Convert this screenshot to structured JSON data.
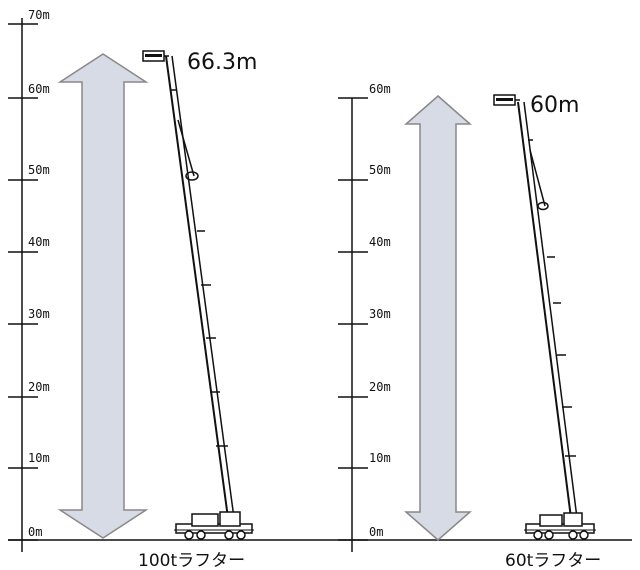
{
  "scale": {
    "labels": [
      "0m",
      "10m",
      "20m",
      "30m",
      "40m",
      "50m",
      "60m",
      "70m"
    ],
    "values": [
      0,
      10,
      20,
      30,
      40,
      50,
      60,
      70
    ]
  },
  "cranes": [
    {
      "name": "100tラフター",
      "height_value": 66.3,
      "height_text": "66.3m"
    },
    {
      "name": "60tラフター",
      "height_value": 60,
      "height_text": "60m"
    }
  ],
  "colors": {
    "arrow_fill": "#d6dbe6",
    "arrow_stroke": "#888888",
    "line": "#111111"
  },
  "icons": [
    "double-arrow-icon",
    "crane-boom-icon",
    "crane-carrier-icon",
    "basket-icon"
  ]
}
